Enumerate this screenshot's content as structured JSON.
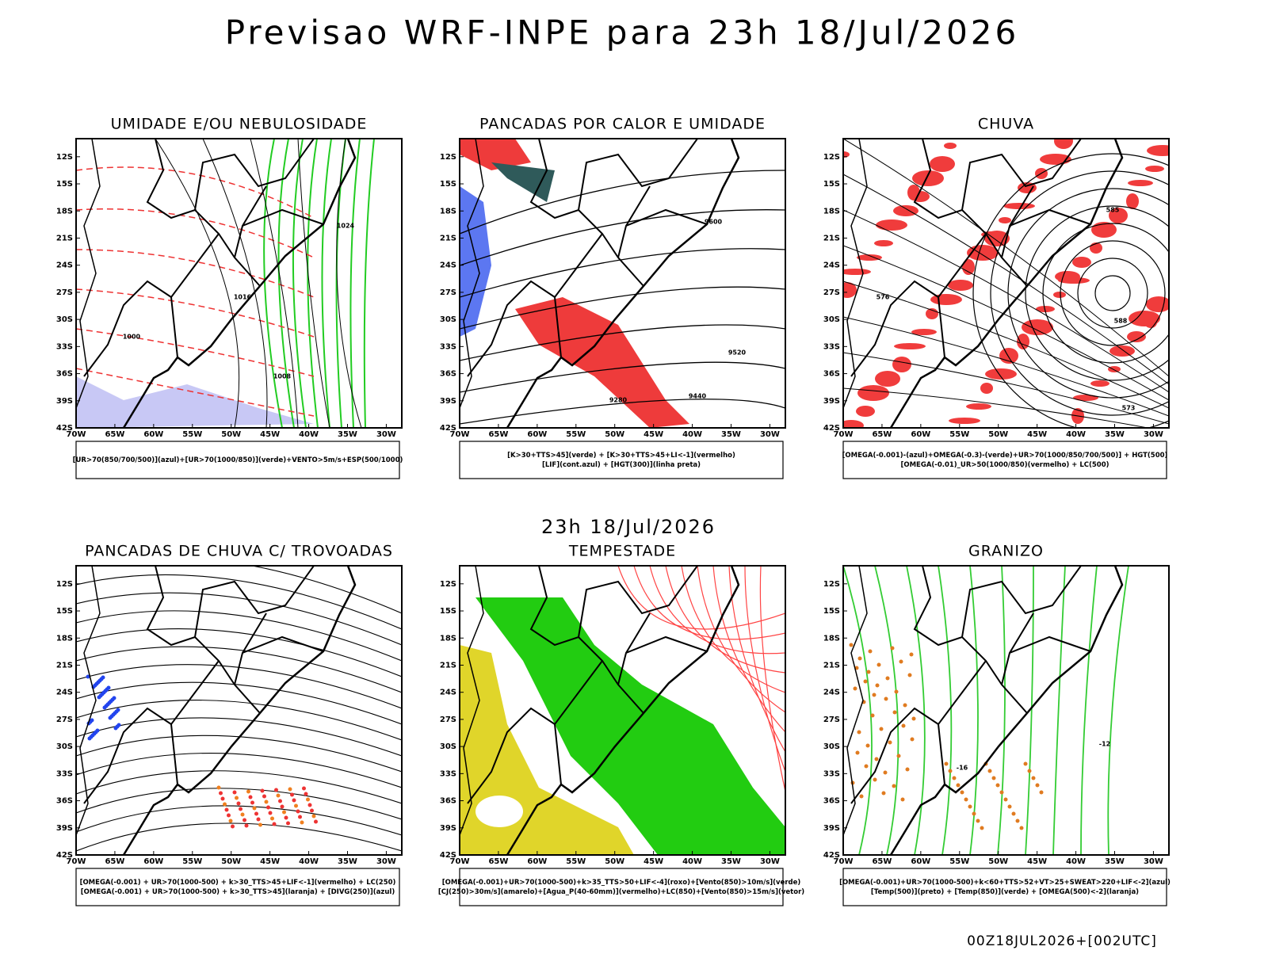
{
  "title": "Previsao WRF-INPE  para 23h 18/Jul/2026",
  "subtitle": "23h 18/Jul/2026",
  "footer": "00Z18JUL2026+[002UTC]",
  "lat_labels": [
    "12S",
    "15S",
    "18S",
    "21S",
    "24S",
    "27S",
    "30S",
    "33S",
    "36S",
    "39S",
    "42S"
  ],
  "lon_labels": [
    "70W",
    "65W",
    "60W",
    "55W",
    "50W",
    "45W",
    "40W",
    "35W",
    "30W"
  ],
  "panels": [
    {
      "title": "UMIDADE E/OU NEBULOSIDADE",
      "legend": [
        "[UR>70(850/700/500)](azul)+[UR>70(1000/850)](verde)+VENTO>5m/s+ESP(500/1000)"
      ],
      "labels": [
        "1024",
        "1016",
        "1008",
        "1000"
      ]
    },
    {
      "title": "PANCADAS POR CALOR E UMIDADE",
      "legend": [
        "[K>30+TTS>45](verde) + [K>30+TTS>45+LI<-1](vermelho)",
        "[LIF](cont.azul) + [HGT(300)](linha preta)"
      ],
      "labels": [
        "9600",
        "9520",
        "9440",
        "9280"
      ]
    },
    {
      "title": "CHUVA",
      "legend": [
        "[OMEGA(-0.001)-(azul)+OMEGA(-0.3)-(verde)+UR>70(1000/850/700/500)] + HGT(500)",
        "[OMEGA(-0.01)_UR>50(1000/850)(vermelho) + LC(500)"
      ],
      "labels": [
        "585",
        "588",
        "576",
        "573"
      ]
    },
    {
      "title": "PANCADAS DE CHUVA C/ TROVOADAS",
      "legend": [
        "[OMEGA(-0.001) + UR>70(1000-500) + k>30_TTS>45+LIF<-1](vermelho) + LC(250)",
        "[OMEGA(-0.001) + UR>70(1000-500) + k>30_TTS>45](laranja) + [DIVG(250)](azul)"
      ],
      "labels": []
    },
    {
      "title": "TEMPESTADE",
      "legend": [
        "[OMEGA(-0.001)+UR>70(1000-500)+k>35_TTS>50+LIF<-4](roxo)+[Vento(850)>10m/s](verde)",
        "[CJ(250)>30m/s](amarelo)+[Agua_P(40-60mm)](vermelho)+LC(850)+[Vento(850)>15m/s](vetor)"
      ],
      "labels": []
    },
    {
      "title": "GRANIZO",
      "legend": [
        "[OMEGA(-0.001)+UR>70(1000-500)+k<60+TTS>52+VT>25+SWEAT>220+LIF<-2](azul)",
        "[Temp(500)](preto) + [Temp(850)](verde) + [OMEGA(500)<-2](laranja)"
      ],
      "labels": [
        "-12",
        "-16"
      ]
    }
  ]
}
